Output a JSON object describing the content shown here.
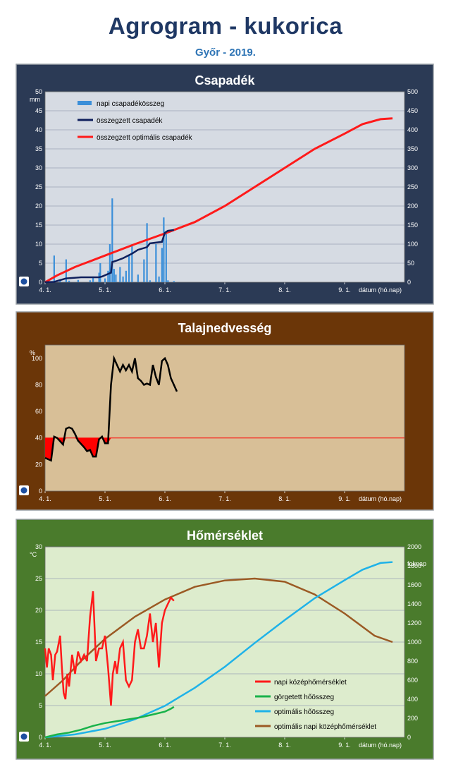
{
  "header": {
    "title": "Agrogram - kukorica",
    "subtitle": "Győr - 2019."
  },
  "colors": {
    "panel1_bg": "#2b3a55",
    "panel1_plot": "#d6dbe3",
    "panel2_bg": "#6b3608",
    "panel2_plot": "#d8bf97",
    "panel3_bg": "#4a7b2c",
    "panel3_plot": "#ddeccd"
  },
  "chart_data": [
    {
      "type": "bar",
      "title": "Csapadék",
      "ylabel": "mm",
      "xlabel": "dátum (hó.nap)",
      "x_ticks": [
        "4. 1.",
        "5. 1.",
        "6. 1.",
        "7. 1.",
        "8. 1.",
        "9. 1."
      ],
      "y_ticks": [
        0,
        5,
        10,
        15,
        20,
        25,
        30,
        35,
        40,
        45,
        50
      ],
      "y2_ticks": [
        0,
        50,
        100,
        150,
        200,
        250,
        300,
        350,
        400,
        450,
        500
      ],
      "ylim": [
        0,
        50
      ],
      "y2lim": [
        0,
        500
      ],
      "grid": true,
      "legend": "top-left",
      "series": [
        {
          "name": "napi csapadékösszeg",
          "kind": "bar",
          "axis": "left",
          "color": "#3b8fd9",
          "points": [
            [
              4.15,
              7
            ],
            [
              4.25,
              0.5
            ],
            [
              4.35,
              6
            ],
            [
              4.4,
              0.4
            ],
            [
              4.55,
              0.6
            ],
            [
              4.75,
              0.5
            ],
            [
              4.8,
              1.5
            ],
            [
              4.9,
              2.5
            ],
            [
              4.92,
              5
            ],
            [
              5.0,
              1
            ],
            [
              5.05,
              3
            ],
            [
              5.08,
              10
            ],
            [
              5.12,
              22
            ],
            [
              5.15,
              3.5
            ],
            [
              5.18,
              2
            ],
            [
              5.25,
              4
            ],
            [
              5.3,
              1.5
            ],
            [
              5.35,
              3
            ],
            [
              5.4,
              7
            ],
            [
              5.45,
              9.5
            ],
            [
              5.55,
              2
            ],
            [
              5.65,
              6
            ],
            [
              5.7,
              15.5
            ],
            [
              5.75,
              0.5
            ],
            [
              5.85,
              10
            ],
            [
              5.9,
              1.5
            ],
            [
              5.95,
              9
            ],
            [
              5.98,
              17
            ],
            [
              6.02,
              13
            ],
            [
              6.05,
              0.5
            ],
            [
              6.15,
              0.3
            ]
          ]
        },
        {
          "name": "összegzett csapadék",
          "kind": "line",
          "axis": "right",
          "color": "#0f1f5c",
          "points": [
            [
              4.0,
              0
            ],
            [
              4.15,
              1
            ],
            [
              4.35,
              10
            ],
            [
              4.6,
              13
            ],
            [
              4.9,
              13
            ],
            [
              4.95,
              15
            ],
            [
              5.1,
              25
            ],
            [
              5.12,
              53
            ],
            [
              5.2,
              57
            ],
            [
              5.3,
              63
            ],
            [
              5.45,
              75
            ],
            [
              5.55,
              85
            ],
            [
              5.7,
              92
            ],
            [
              5.75,
              102
            ],
            [
              5.95,
              106
            ],
            [
              6.0,
              130
            ],
            [
              6.05,
              135
            ],
            [
              6.15,
              137
            ]
          ]
        },
        {
          "name": "összegzett optimális csapadék",
          "kind": "line",
          "axis": "right",
          "color": "#ff1a1a",
          "points": [
            [
              4.0,
              0
            ],
            [
              4.2,
              18
            ],
            [
              4.5,
              40
            ],
            [
              5.0,
              70
            ],
            [
              5.5,
              100
            ],
            [
              6.0,
              128
            ],
            [
              6.5,
              158
            ],
            [
              7.0,
              200
            ],
            [
              7.5,
              250
            ],
            [
              8.0,
              300
            ],
            [
              8.5,
              350
            ],
            [
              9.0,
              390
            ],
            [
              9.3,
              415
            ],
            [
              9.6,
              428
            ],
            [
              9.8,
              430
            ]
          ]
        }
      ]
    },
    {
      "type": "area",
      "title": "Talajnedvesség",
      "ylabel": "%",
      "xlabel": "dátum (hó.nap)",
      "x_ticks": [
        "4. 1.",
        "5. 1.",
        "6. 1.",
        "7. 1.",
        "8. 1.",
        "9. 1."
      ],
      "y_ticks": [
        0,
        20,
        40,
        60,
        80,
        100
      ],
      "ylim": [
        0,
        110
      ],
      "grid": false,
      "threshold": 40,
      "series": [
        {
          "name": "talajnedvesség",
          "kind": "line",
          "color": "#000000",
          "points": [
            [
              4.0,
              25
            ],
            [
              4.1,
              23
            ],
            [
              4.15,
              41
            ],
            [
              4.2,
              40
            ],
            [
              4.3,
              35
            ],
            [
              4.35,
              47
            ],
            [
              4.4,
              48
            ],
            [
              4.45,
              47
            ],
            [
              4.5,
              43
            ],
            [
              4.55,
              38
            ],
            [
              4.65,
              33
            ],
            [
              4.7,
              30
            ],
            [
              4.75,
              31
            ],
            [
              4.8,
              26
            ],
            [
              4.85,
              26
            ],
            [
              4.9,
              39
            ],
            [
              4.95,
              41
            ],
            [
              5.0,
              36
            ],
            [
              5.05,
              36
            ],
            [
              5.1,
              80
            ],
            [
              5.15,
              100
            ],
            [
              5.2,
              95
            ],
            [
              5.25,
              90
            ],
            [
              5.3,
              95
            ],
            [
              5.35,
              91
            ],
            [
              5.4,
              95
            ],
            [
              5.45,
              90
            ],
            [
              5.5,
              100
            ],
            [
              5.55,
              85
            ],
            [
              5.6,
              83
            ],
            [
              5.65,
              80
            ],
            [
              5.7,
              81
            ],
            [
              5.75,
              80
            ],
            [
              5.8,
              95
            ],
            [
              5.85,
              86
            ],
            [
              5.9,
              80
            ],
            [
              5.95,
              98
            ],
            [
              6.0,
              100
            ],
            [
              6.05,
              95
            ],
            [
              6.1,
              85
            ],
            [
              6.15,
              80
            ],
            [
              6.2,
              75
            ]
          ]
        }
      ]
    },
    {
      "type": "line",
      "title": "Hőmérséklet",
      "ylabel": "°C",
      "y2label": "foknap",
      "xlabel": "dátum (hó.nap)",
      "x_ticks": [
        "4. 1.",
        "5. 1.",
        "6. 1.",
        "7. 1.",
        "8. 1.",
        "9. 1."
      ],
      "y_ticks": [
        0,
        5,
        10,
        15,
        20,
        25,
        30
      ],
      "y2_ticks": [
        0,
        200,
        400,
        600,
        800,
        1000,
        1200,
        1400,
        1600,
        1800,
        2000
      ],
      "ylim": [
        0,
        30
      ],
      "y2lim": [
        0,
        2000
      ],
      "grid": true,
      "legend": "bottom-right",
      "series": [
        {
          "name": "napi középhőmérséklet",
          "kind": "line",
          "axis": "left",
          "color": "#ff1a1a",
          "points": [
            [
              4.0,
              14
            ],
            [
              4.03,
              11
            ],
            [
              4.06,
              14
            ],
            [
              4.1,
              13
            ],
            [
              4.13,
              9
            ],
            [
              4.17,
              13
            ],
            [
              4.2,
              13.5
            ],
            [
              4.25,
              16
            ],
            [
              4.28,
              11
            ],
            [
              4.31,
              7
            ],
            [
              4.34,
              6
            ],
            [
              4.37,
              10
            ],
            [
              4.4,
              8
            ],
            [
              4.45,
              13
            ],
            [
              4.5,
              10
            ],
            [
              4.55,
              13.5
            ],
            [
              4.6,
              12
            ],
            [
              4.65,
              13
            ],
            [
              4.7,
              12
            ],
            [
              4.75,
              19
            ],
            [
              4.8,
              23
            ],
            [
              4.85,
              12
            ],
            [
              4.9,
              14
            ],
            [
              4.95,
              14
            ],
            [
              5.0,
              16
            ],
            [
              5.05,
              11
            ],
            [
              5.1,
              5
            ],
            [
              5.13,
              10
            ],
            [
              5.17,
              12
            ],
            [
              5.2,
              10
            ],
            [
              5.25,
              14
            ],
            [
              5.3,
              15
            ],
            [
              5.35,
              9
            ],
            [
              5.4,
              8
            ],
            [
              5.45,
              9
            ],
            [
              5.5,
              15
            ],
            [
              5.55,
              17
            ],
            [
              5.6,
              14
            ],
            [
              5.65,
              14
            ],
            [
              5.7,
              16
            ],
            [
              5.75,
              19.5
            ],
            [
              5.8,
              15
            ],
            [
              5.85,
              18
            ],
            [
              5.9,
              11
            ],
            [
              5.95,
              18
            ],
            [
              6.0,
              20
            ],
            [
              6.05,
              21
            ],
            [
              6.1,
              22
            ],
            [
              6.15,
              21.5
            ]
          ]
        },
        {
          "name": "görgetett hőösszeg",
          "kind": "line",
          "axis": "right",
          "color": "#19b24a",
          "points": [
            [
              4.0,
              0
            ],
            [
              4.2,
              30
            ],
            [
              4.4,
              50
            ],
            [
              4.6,
              80
            ],
            [
              4.8,
              120
            ],
            [
              5.0,
              150
            ],
            [
              5.2,
              170
            ],
            [
              5.4,
              190
            ],
            [
              5.6,
              210
            ],
            [
              5.8,
              240
            ],
            [
              6.0,
              270
            ],
            [
              6.1,
              300
            ],
            [
              6.15,
              320
            ]
          ]
        },
        {
          "name": "optimális hőösszeg",
          "kind": "line",
          "axis": "right",
          "color": "#1fb2e8",
          "points": [
            [
              4.0,
              0
            ],
            [
              4.5,
              30
            ],
            [
              5.0,
              90
            ],
            [
              5.5,
              190
            ],
            [
              6.0,
              330
            ],
            [
              6.5,
              520
            ],
            [
              7.0,
              740
            ],
            [
              7.5,
              990
            ],
            [
              8.0,
              1230
            ],
            [
              8.5,
              1460
            ],
            [
              9.0,
              1650
            ],
            [
              9.3,
              1760
            ],
            [
              9.6,
              1830
            ],
            [
              9.8,
              1840
            ]
          ]
        },
        {
          "name": "optimális napi középhőmérséklet",
          "kind": "line",
          "axis": "left",
          "color": "#9b5a24",
          "points": [
            [
              4.0,
              6.5
            ],
            [
              4.3,
              9
            ],
            [
              4.6,
              12
            ],
            [
              5.0,
              15.5
            ],
            [
              5.5,
              19
            ],
            [
              6.0,
              21.7
            ],
            [
              6.5,
              23.7
            ],
            [
              7.0,
              24.7
            ],
            [
              7.5,
              25
            ],
            [
              8.0,
              24.5
            ],
            [
              8.5,
              22.5
            ],
            [
              9.0,
              19.5
            ],
            [
              9.5,
              16
            ],
            [
              9.8,
              15
            ]
          ]
        }
      ]
    }
  ]
}
